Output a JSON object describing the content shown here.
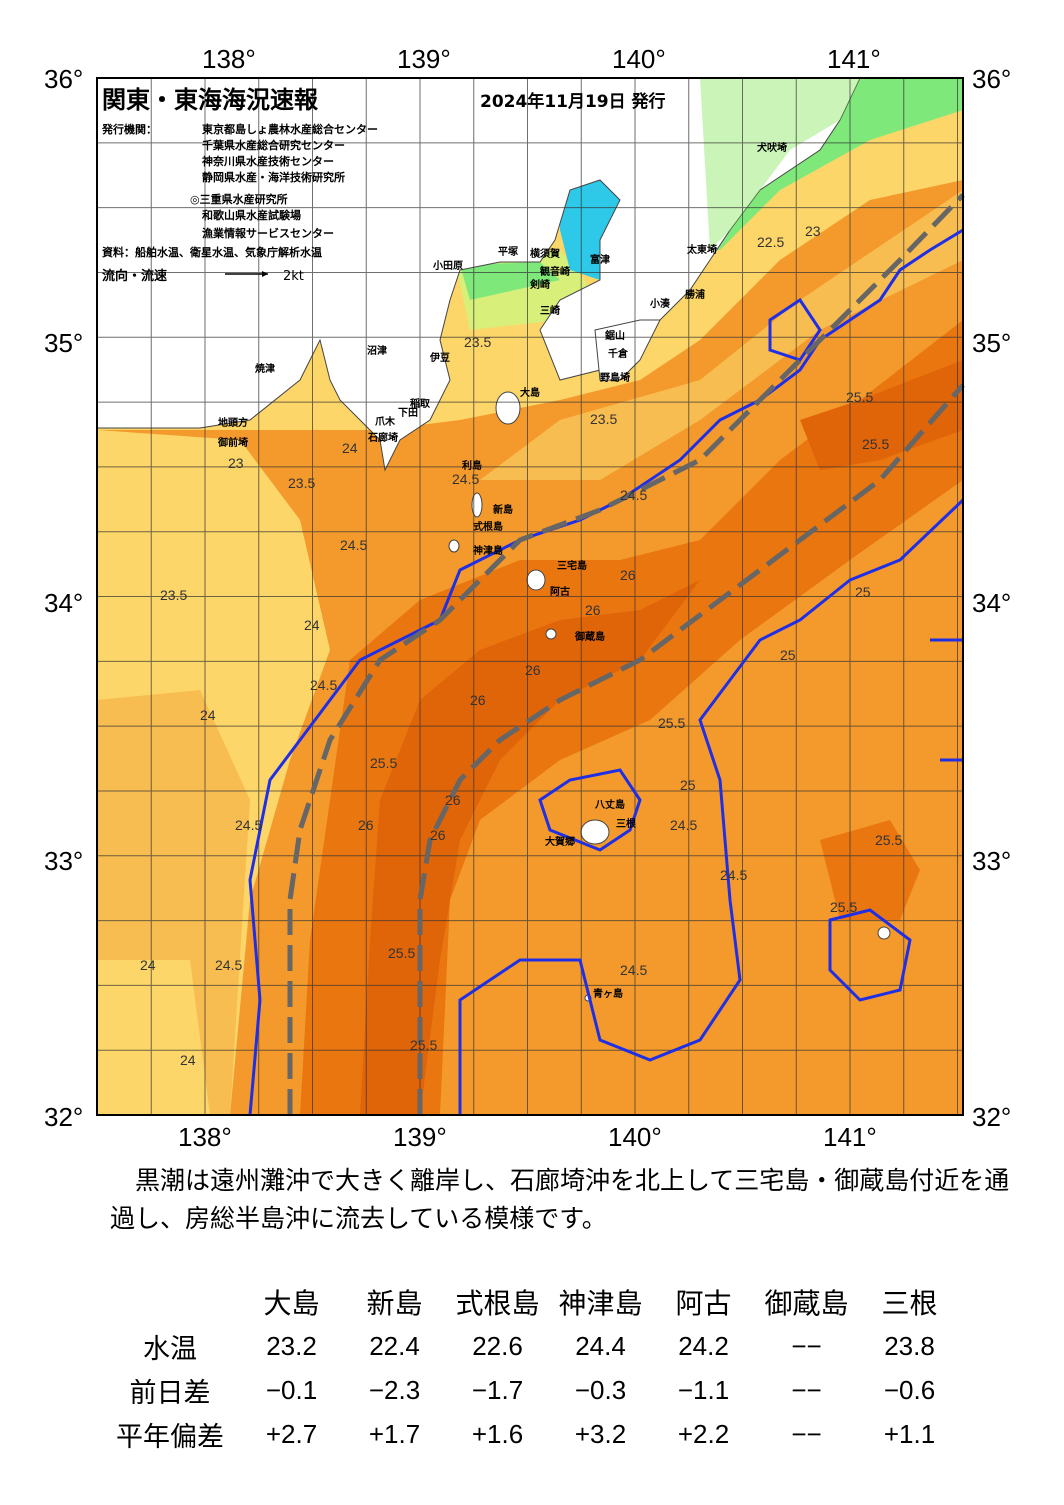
{
  "map": {
    "title": "関東・東海海況速報",
    "issue_date": "2024年11月19日 発行",
    "issuer_label": "発行機関：",
    "issuers": [
      "東京都島しょ農林水産総合センター",
      "千葉県水産総合研究センター",
      "神奈川県水産技術センター",
      "静岡県水産・海洋技術研究所",
      "◎三重県水産研究所",
      "和歌山県水産試験場",
      "漁業情報サービスセンター"
    ],
    "source": "資料：船舶水温、衛星水温、気象庁解析水温",
    "flow_legend": "流向・流速",
    "flow_unit": "2kt",
    "lon_ticks": [
      "138°",
      "139°",
      "140°",
      "141°"
    ],
    "lat_ticks": [
      "36°",
      "35°",
      "34°",
      "33°",
      "32°"
    ],
    "place_names": [
      {
        "name": "犬吠埼"
      },
      {
        "name": "太東埼"
      },
      {
        "name": "勝浦"
      },
      {
        "name": "小湊"
      },
      {
        "name": "鋸山"
      },
      {
        "name": "千倉"
      },
      {
        "name": "野島埼"
      },
      {
        "name": "富津"
      },
      {
        "name": "横須賀"
      },
      {
        "name": "観音崎"
      },
      {
        "name": "剣崎"
      },
      {
        "name": "三崎"
      },
      {
        "name": "平塚"
      },
      {
        "name": "小田原"
      },
      {
        "name": "沼津"
      },
      {
        "name": "伊豆"
      },
      {
        "name": "稲取"
      },
      {
        "name": "下田"
      },
      {
        "name": "爪木"
      },
      {
        "name": "石廊埼"
      },
      {
        "name": "焼津"
      },
      {
        "name": "御前埼"
      },
      {
        "name": "地頭方"
      },
      {
        "name": "大島"
      },
      {
        "name": "利島"
      },
      {
        "name": "新島"
      },
      {
        "name": "式根島"
      },
      {
        "name": "神津島"
      },
      {
        "name": "三宅島"
      },
      {
        "name": "阿古"
      },
      {
        "name": "御蔵島"
      },
      {
        "name": "八丈島"
      },
      {
        "name": "三根"
      },
      {
        "name": "大賀郷"
      },
      {
        "name": "青ヶ島"
      }
    ],
    "contour_labels": [
      "22.5",
      "23",
      "23.5",
      "24",
      "24.5",
      "25",
      "25.5",
      "26"
    ],
    "colors": {
      "land": "#ffffff",
      "sst_22": "#2ec8e8",
      "sst_22_5": "#7ee87a",
      "sst_23": "#d8f07a",
      "sst_23_5": "#fcd668",
      "sst_24": "#f8bd50",
      "sst_24_5": "#f49a2c",
      "sst_25": "#f28c1c",
      "sst_25_5": "#ea7610",
      "sst_26": "#e06408",
      "kuroshio_axis": "#666666",
      "front": "#1f2fe6"
    }
  },
  "summary": "　黒潮は遠州灘沖で大きく離岸し、石廊埼沖を北上して三宅島・御蔵島付近を通過し、房総半島沖に流去している模様です。",
  "table": {
    "stations": [
      "大島",
      "新島",
      "式根島",
      "神津島",
      "阿古",
      "御蔵島",
      "三根"
    ],
    "rows": [
      {
        "label": "水温",
        "values": [
          "23.2",
          "22.4",
          "22.6",
          "24.4",
          "24.2",
          "−−",
          "23.8"
        ]
      },
      {
        "label": "前日差",
        "values": [
          "−0.1",
          "−2.3",
          "−1.7",
          "−0.3",
          "−1.1",
          "−−",
          "−0.6"
        ]
      },
      {
        "label": "平年偏差",
        "values": [
          "+2.7",
          "+1.7",
          "+1.6",
          "+3.2",
          "+2.2",
          "−−",
          "+1.1"
        ]
      }
    ]
  }
}
